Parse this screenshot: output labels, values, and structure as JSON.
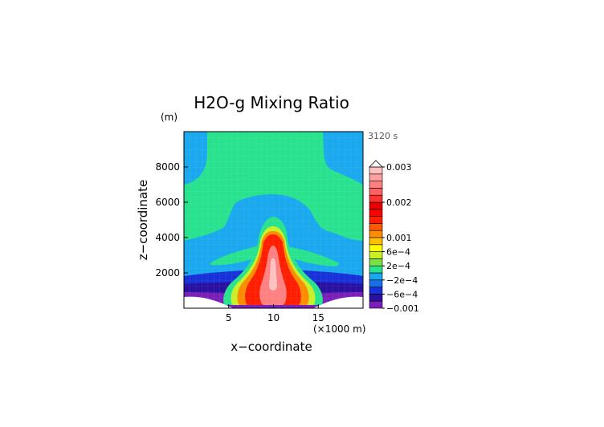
{
  "chart_data": {
    "type": "heatmap",
    "title": "H2O-g Mixing Ratio",
    "time_label": "3120 s",
    "xlabel": "x−coordinate",
    "ylabel": "z−coordinate",
    "x_unit": "(×1000 m)",
    "y_unit": "(m)",
    "xlim": [
      0,
      20
    ],
    "ylim": [
      0,
      10000
    ],
    "x_ticks": [
      5,
      10,
      15
    ],
    "x_tick_labels": [
      "5",
      "10",
      "15"
    ],
    "y_ticks": [
      2000,
      4000,
      6000,
      8000
    ],
    "y_tick_labels": [
      "2000",
      "4000",
      "6000",
      "8000"
    ],
    "grid": true,
    "colorbar": {
      "levels": [
        -0.001,
        -0.0008,
        -0.0006,
        -0.0004,
        -0.0002,
        0,
        0.0002,
        0.0004,
        0.0006,
        0.0008,
        0.001,
        0.0012,
        0.0014,
        0.0016,
        0.0018,
        0.002,
        0.0022,
        0.0024,
        0.0026,
        0.0028,
        0.003
      ],
      "colors": [
        "#7a20b8",
        "#2a10a0",
        "#1830d8",
        "#1670ee",
        "#1aa8ee",
        "#28e28e",
        "#7ae040",
        "#c8f028",
        "#ffff00",
        "#ffc000",
        "#ff8c00",
        "#ff5a00",
        "#ff1e00",
        "#ff0000",
        "#e80000",
        "#ff3030",
        "#ff6060",
        "#ff8080",
        "#ffa0a0",
        "#ffc0c0"
      ],
      "labels": [
        {
          "value": 0.003,
          "text": "0.003"
        },
        {
          "value": 0.002,
          "text": "0.002"
        },
        {
          "value": 0.001,
          "text": "0.001"
        },
        {
          "value": 0.0006,
          "text": "6e−4"
        },
        {
          "value": 0.0002,
          "text": "2e−4"
        },
        {
          "value": -0.0002,
          "text": "−2e−4"
        },
        {
          "value": -0.0006,
          "text": "−6e−4"
        },
        {
          "value": -0.001,
          "text": "−0.001"
        }
      ]
    }
  }
}
